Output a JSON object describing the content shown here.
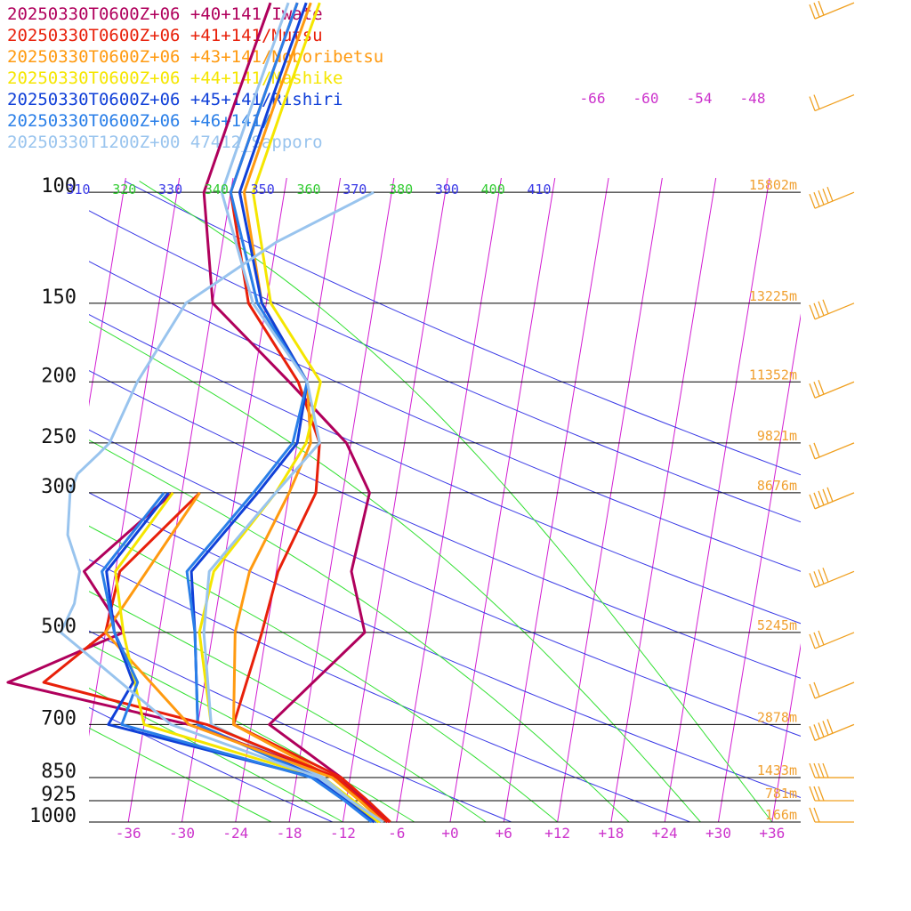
{
  "chart_data": {
    "type": "line",
    "subtype": "skew-T log-P sounding",
    "title": "",
    "xlabel": "",
    "ylabel": "",
    "x_unit": "temperature (°C)",
    "y_unit": "pressure (hPa)",
    "pressure_ticks": [
      "100",
      "150",
      "200",
      "250",
      "300",
      "500",
      "700",
      "850",
      "925",
      "1000"
    ],
    "pressure_values": [
      100,
      150,
      200,
      250,
      300,
      500,
      700,
      850,
      925,
      1000
    ],
    "temp_ticks": [
      "-36",
      "-30",
      "-24",
      "-18",
      "-12",
      "-6",
      "+0",
      "+6",
      "+12",
      "+18",
      "+24",
      "+30",
      "+36"
    ],
    "temp_values": [
      -36,
      -30,
      -24,
      -18,
      -12,
      -6,
      0,
      6,
      12,
      18,
      24,
      30,
      36
    ],
    "upper_temp_ticks": [
      "-66",
      "-60",
      "-54",
      "-48"
    ],
    "theta_ticks": [
      "310",
      "320",
      "330",
      "340",
      "350",
      "360",
      "370",
      "380",
      "390",
      "400",
      "410"
    ],
    "height_labels": [
      "15802m",
      "13225m",
      "11352m",
      "9821m",
      "8676m",
      "5245m",
      "2878m",
      "1433m",
      "781m",
      "166m"
    ],
    "height_pressures": [
      100,
      150,
      200,
      250,
      300,
      500,
      700,
      850,
      925,
      1000
    ],
    "grid": true,
    "legend_position": "top-left",
    "series": [
      {
        "name": "20250330T0600Z+06 +40+141/Iwate",
        "color": "#b0005c",
        "points": [
          [
            1000,
            -6.8
          ],
          [
            925,
            -9.9
          ],
          [
            850,
            -13.0
          ],
          [
            700,
            -22.0
          ],
          [
            500,
            -13.0
          ],
          [
            400,
            -15.6
          ],
          [
            300,
            -15.0
          ],
          [
            250,
            -18.5
          ],
          [
            200,
            -26.0
          ],
          [
            150,
            -36.0
          ],
          [
            100,
            -39.0
          ]
        ]
      },
      {
        "name": "20250330T0600Z+06 +41+141/Mutsu",
        "color": "#e8200a",
        "points": [
          [
            1000,
            -6.7
          ],
          [
            925,
            -9.6
          ],
          [
            850,
            -13.0
          ],
          [
            700,
            -26.0
          ],
          [
            500,
            -24.5
          ],
          [
            400,
            -23.8
          ],
          [
            300,
            -21.0
          ],
          [
            250,
            -21.5
          ],
          [
            200,
            -25.0
          ],
          [
            150,
            -32.0
          ],
          [
            100,
            -36.0
          ]
        ]
      },
      {
        "name": "20250330T0600Z+06 +43+141/Noboribetsu",
        "color": "#ff9a10",
        "points": [
          [
            1000,
            -7.5
          ],
          [
            925,
            -10.5
          ],
          [
            850,
            -14.0
          ],
          [
            700,
            -26.0
          ],
          [
            500,
            -27.5
          ],
          [
            400,
            -27.0
          ],
          [
            300,
            -24.0
          ],
          [
            250,
            -22.5
          ],
          [
            200,
            -24.0
          ],
          [
            150,
            -30.5
          ],
          [
            100,
            -34.5
          ]
        ]
      },
      {
        "name": "20250330T0600Z+06 +44+141/Mashike",
        "color": "#f5e600",
        "points": [
          [
            1000,
            -7.8
          ],
          [
            925,
            -11.2
          ],
          [
            850,
            -15.0
          ],
          [
            700,
            -28.5
          ],
          [
            500,
            -31.5
          ],
          [
            400,
            -31.0
          ],
          [
            300,
            -25.5
          ],
          [
            250,
            -23.0
          ],
          [
            200,
            -22.5
          ],
          [
            150,
            -29.5
          ],
          [
            100,
            -33.5
          ]
        ]
      },
      {
        "name": "20250330T0600Z+06 +45+141/Rishiri",
        "color": "#1040d8",
        "points": [
          [
            1000,
            -8.0
          ],
          [
            925,
            -11.5
          ],
          [
            850,
            -15.5
          ],
          [
            700,
            -30.0
          ],
          [
            500,
            -32.0
          ],
          [
            400,
            -33.5
          ],
          [
            300,
            -27.5
          ],
          [
            250,
            -24.0
          ],
          [
            200,
            -24.0
          ],
          [
            150,
            -30.5
          ],
          [
            100,
            -35.0
          ]
        ]
      },
      {
        "name": "20250330T0600Z+06 +46+141/",
        "color": "#2a7fe8",
        "points": [
          [
            1000,
            -8.2
          ],
          [
            925,
            -11.8
          ],
          [
            850,
            -15.8
          ],
          [
            700,
            -30.0
          ],
          [
            500,
            -32.0
          ],
          [
            400,
            -34.0
          ],
          [
            300,
            -28.0
          ],
          [
            250,
            -24.5
          ],
          [
            200,
            -24.0
          ],
          [
            150,
            -31.0
          ],
          [
            100,
            -36.0
          ]
        ]
      },
      {
        "name": "20250330T1200Z+00 47412_Sapporo",
        "color": "#99c4ee",
        "points": [
          [
            1000,
            -8.5
          ],
          [
            925,
            -11.5
          ],
          [
            850,
            -15.0
          ],
          [
            700,
            -28.5
          ],
          [
            500,
            -31.0
          ],
          [
            400,
            -31.5
          ],
          [
            300,
            -25.5
          ],
          [
            250,
            -21.5
          ],
          [
            200,
            -24.0
          ],
          [
            150,
            -31.5
          ],
          [
            100,
            -37.0
          ]
        ]
      },
      {
        "name": "",
        "color": "#b0005c",
        "points": [
          [
            1000,
            -7.0
          ],
          [
            925,
            -10.0
          ],
          [
            850,
            -13.5
          ],
          [
            700,
            -31.0
          ],
          [
            600,
            -52.0
          ],
          [
            500,
            -40.0
          ],
          [
            400,
            -45.5
          ],
          [
            300,
            -37.0
          ]
        ]
      },
      {
        "name": "",
        "color": "#e8200a",
        "points": [
          [
            1000,
            -7.0
          ],
          [
            925,
            -10.2
          ],
          [
            850,
            -13.5
          ],
          [
            700,
            -29.0
          ],
          [
            600,
            -48.0
          ],
          [
            500,
            -42.0
          ],
          [
            400,
            -41.5
          ],
          [
            300,
            -34.0
          ]
        ]
      },
      {
        "name": "",
        "color": "#ff9a10",
        "points": [
          [
            1000,
            -7.5
          ],
          [
            925,
            -10.5
          ],
          [
            850,
            -14.0
          ],
          [
            700,
            -31.0
          ],
          [
            500,
            -42.0
          ],
          [
            300,
            -34.0
          ]
        ]
      },
      {
        "name": "",
        "color": "#f5e600",
        "points": [
          [
            1000,
            -8.0
          ],
          [
            925,
            -11.5
          ],
          [
            850,
            -15.5
          ],
          [
            700,
            -36.0
          ],
          [
            500,
            -40.0
          ],
          [
            400,
            -42.0
          ],
          [
            300,
            -37.0
          ]
        ]
      },
      {
        "name": "",
        "color": "#1040d8",
        "points": [
          [
            1000,
            -8.5
          ],
          [
            925,
            -12.0
          ],
          [
            850,
            -16.0
          ],
          [
            700,
            -40.0
          ],
          [
            600,
            -38.0
          ],
          [
            500,
            -41.0
          ],
          [
            400,
            -43.0
          ],
          [
            300,
            -37.5
          ]
        ]
      },
      {
        "name": "",
        "color": "#2a7fe8",
        "points": [
          [
            1000,
            -8.8
          ],
          [
            925,
            -12.2
          ],
          [
            850,
            -16.3
          ],
          [
            700,
            -38.5
          ],
          [
            600,
            -37.5
          ],
          [
            500,
            -41.0
          ],
          [
            400,
            -43.5
          ],
          [
            300,
            -38.0
          ]
        ]
      },
      {
        "name": "",
        "color": "#99c4ee",
        "points": [
          [
            1000,
            -7.5
          ],
          [
            925,
            -11.5
          ],
          [
            850,
            -15.5
          ],
          [
            700,
            -33.0
          ],
          [
            550,
            -43.0
          ],
          [
            500,
            -47.0
          ],
          [
            450,
            -46.0
          ],
          [
            400,
            -46.0
          ],
          [
            350,
            -48.0
          ],
          [
            300,
            -48.5
          ],
          [
            280,
            -48.0
          ],
          [
            260,
            -46.0
          ],
          [
            250,
            -45.0
          ],
          [
            200,
            -43.0
          ],
          [
            150,
            -39.0
          ],
          [
            120,
            -30.0
          ],
          [
            100,
            -20.0
          ]
        ]
      }
    ]
  }
}
